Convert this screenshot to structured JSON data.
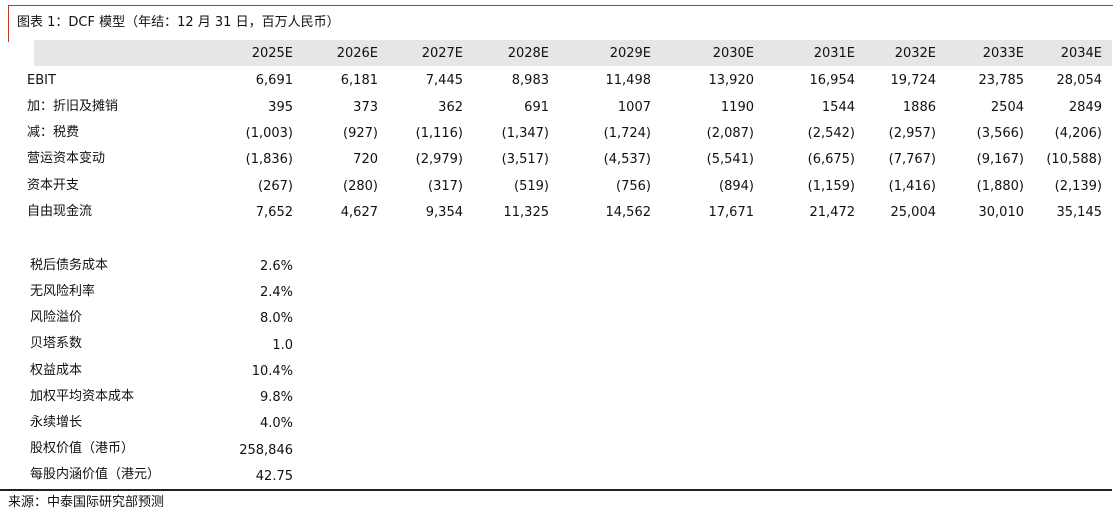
{
  "title": "图表 1：DCF 模型（年结：12 月 31 日，百万人民币）",
  "years": [
    "2025E",
    "2026E",
    "2027E",
    "2028E",
    "2029E",
    "2030E",
    "2031E",
    "2032E",
    "2033E",
    "2034E"
  ],
  "rows": [
    {
      "label": "EBIT",
      "values": [
        "6,691",
        "6,181",
        "7,445",
        "8,983",
        "11,498",
        "13,920",
        "16,954",
        "19,724",
        "23,785",
        "28,054"
      ]
    },
    {
      "label": "加：折旧及摊销",
      "values": [
        "395",
        "373",
        "362",
        "691",
        "1007",
        "1190",
        "1544",
        "1886",
        "2504",
        "2849"
      ]
    },
    {
      "label": "减：税费",
      "values": [
        "(1,003)",
        "(927)",
        "(1,116)",
        "(1,347)",
        "(1,724)",
        "(2,087)",
        "(2,542)",
        "(2,957)",
        "(3,566)",
        "(4,206)"
      ]
    },
    {
      "label": "营运资本变动",
      "values": [
        "(1,836)",
        "720",
        "(2,979)",
        "(3,517)",
        "(4,537)",
        "(5,541)",
        "(6,675)",
        "(7,767)",
        "(9,167)",
        "(10,588)"
      ]
    },
    {
      "label": "资本开支",
      "values": [
        "(267)",
        "(280)",
        "(317)",
        "(519)",
        "(756)",
        "(894)",
        "(1,159)",
        "(1,416)",
        "(1,880)",
        "(2,139)"
      ]
    },
    {
      "label": "自由现金流",
      "values": [
        "7,652",
        "4,627",
        "9,354",
        "11,325",
        "14,562",
        "17,671",
        "21,472",
        "25,004",
        "30,010",
        "35,145"
      ]
    }
  ],
  "assumptions": [
    {
      "label": "税后债务成本",
      "value": "2.6%"
    },
    {
      "label": "无风险利率",
      "value": "2.4%"
    },
    {
      "label": "风险溢价",
      "value": "8.0%"
    },
    {
      "label": "贝塔系数",
      "value": "1.0"
    },
    {
      "label": "权益成本",
      "value": "10.4%"
    },
    {
      "label": "加权平均资本成本",
      "value": "9.8%"
    },
    {
      "label": "永续增长",
      "value": "4.0%"
    },
    {
      "label": "股权价值（港币）",
      "value": "258,846"
    },
    {
      "label": "每股内涵价值（港元）",
      "value": "42.75"
    }
  ],
  "source": "来源：中泰国际研究部预测",
  "colors": {
    "accent_red": "#c0392b",
    "header_band": "#e6e6e6"
  }
}
